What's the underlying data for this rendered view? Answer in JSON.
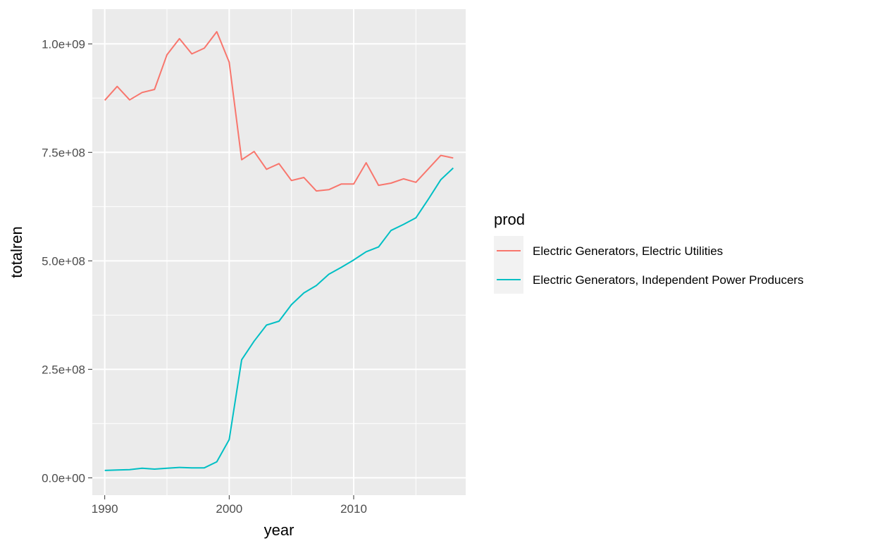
{
  "chart_data": {
    "type": "line",
    "xlabel": "year",
    "ylabel": "totalren",
    "xlim": [
      1989,
      2019
    ],
    "ylim": [
      -40000000,
      1080000000
    ],
    "x_ticks": [
      1990,
      2000,
      2010
    ],
    "x_tick_labels": [
      "1990",
      "2000",
      "2010"
    ],
    "y_ticks": [
      0,
      250000000,
      500000000,
      750000000,
      1000000000
    ],
    "y_tick_labels": [
      "0.0e+00",
      "2.5e+08",
      "5.0e+08",
      "7.5e+08",
      "1.0e+09"
    ],
    "grid": true,
    "legend": {
      "title": "prod",
      "placement": "right"
    },
    "x": [
      1990,
      1991,
      1992,
      1993,
      1994,
      1995,
      1996,
      1997,
      1998,
      1999,
      2000,
      2001,
      2002,
      2003,
      2004,
      2005,
      2006,
      2007,
      2008,
      2009,
      2010,
      2011,
      2012,
      2013,
      2014,
      2015,
      2016,
      2017,
      2018
    ],
    "series": [
      {
        "name": "Electric Generators, Electric Utilities",
        "color": "#F8766D",
        "values": [
          870000000,
          902000000,
          871000000,
          888000000,
          895000000,
          975000000,
          1012000000,
          977000000,
          990000000,
          1028000000,
          958000000,
          733000000,
          752000000,
          711000000,
          724000000,
          685000000,
          692000000,
          661000000,
          664000000,
          677000000,
          677000000,
          726000000,
          674000000,
          679000000,
          689000000,
          681000000,
          712000000,
          743000000,
          737000000
        ]
      },
      {
        "name": "Electric Generators, Independent Power Producers",
        "color": "#00BFC4",
        "values": [
          17000000,
          18000000,
          19000000,
          22000000,
          20000000,
          22000000,
          24000000,
          23000000,
          23000000,
          37000000,
          88000000,
          272000000,
          315000000,
          352000000,
          361000000,
          399000000,
          426000000,
          443000000,
          469000000,
          485000000,
          502000000,
          521000000,
          532000000,
          570000000,
          584000000,
          599000000,
          642000000,
          687000000,
          714000000
        ]
      }
    ]
  }
}
